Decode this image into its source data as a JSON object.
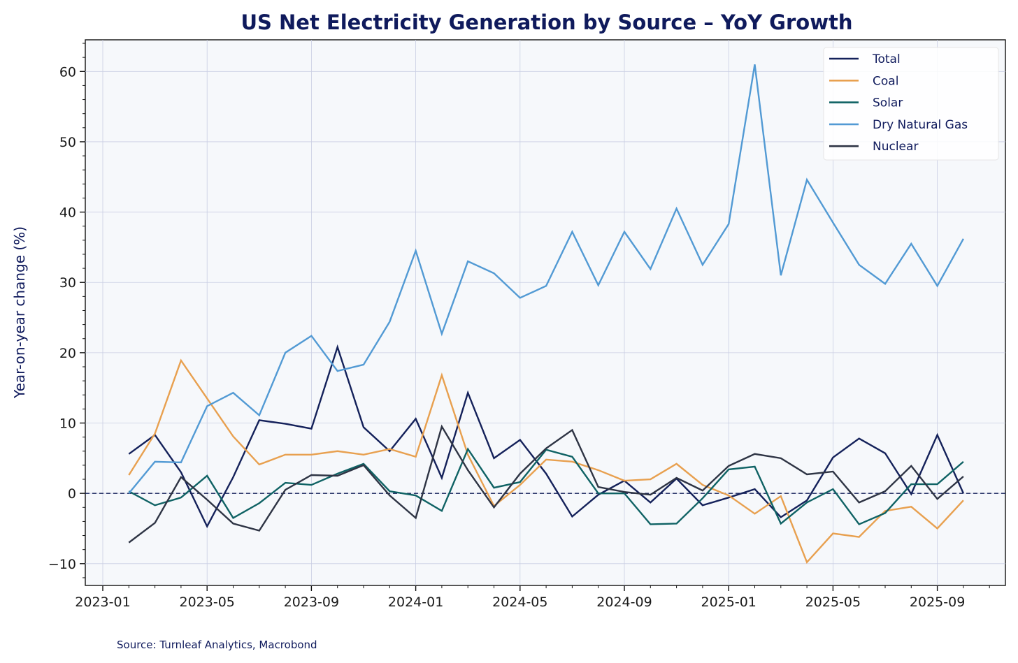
{
  "chart_data": {
    "type": "line",
    "title": "US Net Electricity Generation by Source – YoY Growth",
    "xlabel": "",
    "ylabel": "Year-on-year change (%)",
    "source": "Source: Turnleaf Analytics, Macrobond",
    "ylim": [
      -13.1,
      64.5
    ],
    "yticks": [
      -10,
      0,
      10,
      20,
      30,
      40,
      50,
      60
    ],
    "ytick_labels": [
      "−10",
      "0",
      "10",
      "20",
      "30",
      "40",
      "50",
      "60"
    ],
    "xtick_labels": [
      "2023-01",
      "2023-05",
      "2023-09",
      "2024-01",
      "2024-05",
      "2024-09",
      "2025-01",
      "2025-05",
      "2025-09"
    ],
    "grid": true,
    "legend_position": "top-right",
    "reference_line": 0,
    "x": [
      "2023-02",
      "2023-03",
      "2023-04",
      "2023-05",
      "2023-06",
      "2023-07",
      "2023-08",
      "2023-09",
      "2023-10",
      "2023-11",
      "2023-12",
      "2024-01",
      "2024-02",
      "2024-03",
      "2024-04",
      "2024-05",
      "2024-06",
      "2024-07",
      "2024-08",
      "2024-09",
      "2024-10",
      "2024-11",
      "2024-12",
      "2025-01",
      "2025-02",
      "2025-03",
      "2025-04",
      "2025-05",
      "2025-06",
      "2025-07",
      "2025-08",
      "2025-09",
      "2025-10"
    ],
    "series": [
      {
        "name": "Total",
        "color": "#14215a",
        "values": [
          5.6,
          8.3,
          3.0,
          -4.7,
          2.3,
          10.4,
          9.9,
          9.2,
          20.8,
          9.4,
          6.0,
          10.6,
          2.2,
          14.3,
          5.0,
          7.6,
          2.8,
          -3.3,
          -0.2,
          1.8,
          -1.3,
          2.1,
          -1.7,
          -0.6,
          0.6,
          -3.4,
          -1.0,
          5.1,
          7.8,
          5.7,
          -0.1,
          8.3,
          0.0
        ]
      },
      {
        "name": "Coal",
        "color": "#e8a04f",
        "values": [
          2.6,
          8.5,
          18.9,
          13.5,
          8.1,
          4.1,
          5.5,
          5.5,
          6.0,
          5.5,
          6.3,
          5.2,
          16.8,
          5.5,
          -1.8,
          1.2,
          4.8,
          4.5,
          3.3,
          1.8,
          2.0,
          4.2,
          1.2,
          -0.3,
          -2.9,
          -0.4,
          -9.8,
          -5.7,
          -6.2,
          -2.5,
          -1.9,
          -5.0,
          -1.0
        ]
      },
      {
        "name": "Solar",
        "color": "#0f6264",
        "values": [
          0.3,
          -1.7,
          -0.6,
          2.5,
          -3.5,
          -1.4,
          1.5,
          1.2,
          2.8,
          4.2,
          0.3,
          -0.3,
          -2.5,
          6.3,
          0.8,
          1.6,
          6.2,
          5.2,
          0.0,
          0.0,
          -4.4,
          -4.3,
          -0.7,
          3.4,
          3.8,
          -4.3,
          -1.3,
          0.6,
          -4.4,
          -2.8,
          1.3,
          1.3,
          4.5
        ]
      },
      {
        "name": "Dry Natural Gas",
        "color": "#529ad4",
        "values": [
          0.0,
          4.5,
          4.4,
          12.4,
          14.3,
          11.1,
          20.0,
          22.4,
          17.4,
          18.3,
          24.4,
          34.5,
          22.7,
          33.0,
          31.3,
          27.8,
          29.5,
          37.2,
          29.6,
          37.2,
          31.9,
          40.5,
          32.5,
          38.3,
          61.0,
          31.0,
          44.6,
          38.5,
          32.5,
          29.8,
          35.5,
          29.5,
          36.2
        ]
      },
      {
        "name": "Nuclear",
        "color": "#2e3444",
        "values": [
          -7.0,
          -4.2,
          2.3,
          -0.9,
          -4.3,
          -5.3,
          0.5,
          2.6,
          2.5,
          4.0,
          -0.3,
          -3.5,
          9.5,
          3.3,
          -2.0,
          2.8,
          6.4,
          9.0,
          0.9,
          0.2,
          -0.2,
          2.2,
          0.4,
          3.9,
          5.6,
          5.0,
          2.7,
          3.1,
          -1.3,
          0.3,
          3.9,
          -0.8,
          2.4
        ]
      }
    ]
  }
}
